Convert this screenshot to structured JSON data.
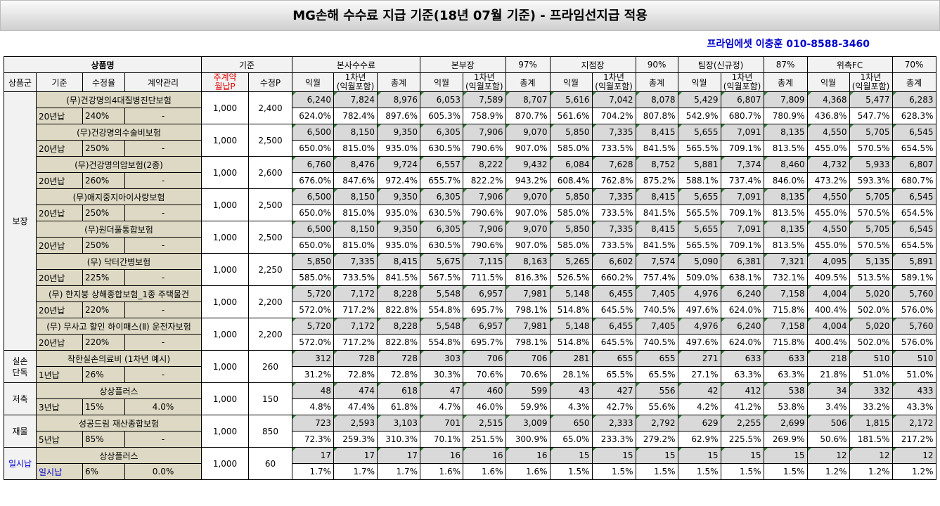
{
  "title": "MG손해 수수료 지급 기준(18년 07월 기준) - 프라임선지급 적용",
  "contact": "프라임에셋 이충훈 010-8588-3460",
  "header": {
    "product_name": "상품명",
    "basis": "기준",
    "hq": "본사수수료",
    "bonbujang": "본부장",
    "bonbujang_rate": "97%",
    "jijeomjang": "지점장",
    "jijeomjang_rate": "90%",
    "timjang": "팀장(신규정)",
    "timjang_rate": "87%",
    "witakfc": "위촉FC",
    "witakfc_rate": "70%",
    "group": "상품군",
    "gijun": "기준",
    "sujeongyul": "수정율",
    "contract_mgmt": "계약관리",
    "main_premium_1": "주계약",
    "main_premium_2": "월납P",
    "modified_p": "수정P",
    "ikwol": "익월",
    "first_year_1": "1차년",
    "first_year_2": "(익월포함)",
    "total": "총계"
  },
  "groups": [
    {
      "name": "보장",
      "blue": false,
      "products": [
        {
          "name": "(무)건강명의4대질병진단보험",
          "term": "20년납",
          "rate": "240%",
          "mgmt": "-",
          "main": "1,000",
          "mod": "2,400",
          "vals": [
            "6,240",
            "7,824",
            "8,976",
            "6,053",
            "7,589",
            "8,707",
            "5,616",
            "7,042",
            "8,078",
            "5,429",
            "6,807",
            "7,809",
            "4,368",
            "5,477",
            "6,283"
          ],
          "pcts": [
            "624.0%",
            "782.4%",
            "897.6%",
            "605.3%",
            "758.9%",
            "870.7%",
            "561.6%",
            "704.2%",
            "807.8%",
            "542.9%",
            "680.7%",
            "780.9%",
            "436.8%",
            "547.7%",
            "628.3%"
          ]
        },
        {
          "name": "(무)건강명의수술비보험",
          "term": "20년납",
          "rate": "250%",
          "mgmt": "-",
          "main": "1,000",
          "mod": "2,500",
          "vals": [
            "6,500",
            "8,150",
            "9,350",
            "6,305",
            "7,906",
            "9,070",
            "5,850",
            "7,335",
            "8,415",
            "5,655",
            "7,091",
            "8,135",
            "4,550",
            "5,705",
            "6,545"
          ],
          "pcts": [
            "650.0%",
            "815.0%",
            "935.0%",
            "630.5%",
            "790.6%",
            "907.0%",
            "585.0%",
            "733.5%",
            "841.5%",
            "565.5%",
            "709.1%",
            "813.5%",
            "455.0%",
            "570.5%",
            "654.5%"
          ]
        },
        {
          "name": "(무)건강명의암보험(2종)",
          "term": "20년납",
          "rate": "260%",
          "mgmt": "-",
          "main": "1,000",
          "mod": "2,600",
          "vals": [
            "6,760",
            "8,476",
            "9,724",
            "6,557",
            "8,222",
            "9,432",
            "6,084",
            "7,628",
            "8,752",
            "5,881",
            "7,374",
            "8,460",
            "4,732",
            "5,933",
            "6,807"
          ],
          "pcts": [
            "676.0%",
            "847.6%",
            "972.4%",
            "655.7%",
            "822.2%",
            "943.2%",
            "608.4%",
            "762.8%",
            "875.2%",
            "588.1%",
            "737.4%",
            "846.0%",
            "473.2%",
            "593.3%",
            "680.7%"
          ]
        },
        {
          "name": "(무)애지중지아이사랑보험",
          "term": "20년납",
          "rate": "250%",
          "mgmt": "-",
          "main": "1,000",
          "mod": "2,500",
          "vals": [
            "6,500",
            "8,150",
            "9,350",
            "6,305",
            "7,906",
            "9,070",
            "5,850",
            "7,335",
            "8,415",
            "5,655",
            "7,091",
            "8,135",
            "4,550",
            "5,705",
            "6,545"
          ],
          "pcts": [
            "650.0%",
            "815.0%",
            "935.0%",
            "630.5%",
            "790.6%",
            "907.0%",
            "585.0%",
            "733.5%",
            "841.5%",
            "565.5%",
            "709.1%",
            "813.5%",
            "455.0%",
            "570.5%",
            "654.5%"
          ]
        },
        {
          "name": "(무)원더풀통합보험",
          "term": "20년납",
          "rate": "250%",
          "mgmt": "-",
          "main": "1,000",
          "mod": "2,500",
          "vals": [
            "6,500",
            "8,150",
            "9,350",
            "6,305",
            "7,906",
            "9,070",
            "5,850",
            "7,335",
            "8,415",
            "5,655",
            "7,091",
            "8,135",
            "4,550",
            "5,705",
            "6,545"
          ],
          "pcts": [
            "650.0%",
            "815.0%",
            "935.0%",
            "630.5%",
            "790.6%",
            "907.0%",
            "585.0%",
            "733.5%",
            "841.5%",
            "565.5%",
            "709.1%",
            "813.5%",
            "455.0%",
            "570.5%",
            "654.5%"
          ]
        },
        {
          "name": "(무) 닥터간병보험",
          "term": "20년납",
          "rate": "225%",
          "mgmt": "-",
          "main": "1,000",
          "mod": "2,250",
          "vals": [
            "5,850",
            "7,335",
            "8,415",
            "5,675",
            "7,115",
            "8,163",
            "5,265",
            "6,602",
            "7,574",
            "5,090",
            "6,381",
            "7,321",
            "4,095",
            "5,135",
            "5,891"
          ],
          "pcts": [
            "585.0%",
            "733.5%",
            "841.5%",
            "567.5%",
            "711.5%",
            "816.3%",
            "526.5%",
            "660.2%",
            "757.4%",
            "509.0%",
            "638.1%",
            "732.1%",
            "409.5%",
            "513.5%",
            "589.1%"
          ]
        },
        {
          "name": "(무) 한지붕 상해종합보험_1종 주택물건",
          "term": "20년납",
          "rate": "220%",
          "mgmt": "-",
          "main": "1,000",
          "mod": "2,200",
          "vals": [
            "5,720",
            "7,172",
            "8,228",
            "5,548",
            "6,957",
            "7,981",
            "5,148",
            "6,455",
            "7,405",
            "4,976",
            "6,240",
            "7,158",
            "4,004",
            "5,020",
            "5,760"
          ],
          "pcts": [
            "572.0%",
            "717.2%",
            "822.8%",
            "554.8%",
            "695.7%",
            "798.1%",
            "514.8%",
            "645.5%",
            "740.5%",
            "497.6%",
            "624.0%",
            "715.8%",
            "400.4%",
            "502.0%",
            "576.0%"
          ]
        },
        {
          "name": "(무) 무사고 할인 하이패스(Ⅱ) 운전자보험",
          "term": "20년납",
          "rate": "220%",
          "mgmt": "-",
          "main": "1,000",
          "mod": "2,200",
          "vals": [
            "5,720",
            "7,172",
            "8,228",
            "5,548",
            "6,957",
            "7,981",
            "5,148",
            "6,455",
            "7,405",
            "4,976",
            "6,240",
            "7,158",
            "4,004",
            "5,020",
            "5,760"
          ],
          "pcts": [
            "572.0%",
            "717.2%",
            "822.8%",
            "554.8%",
            "695.7%",
            "798.1%",
            "514.8%",
            "645.5%",
            "740.5%",
            "497.6%",
            "624.0%",
            "715.8%",
            "400.4%",
            "502.0%",
            "576.0%"
          ]
        }
      ]
    },
    {
      "name": "실손\n단독",
      "blue": false,
      "products": [
        {
          "name": "착한실손의료비 (1차년 예시)",
          "term": "1년납",
          "rate": "26%",
          "mgmt": "-",
          "main": "1,000",
          "mod": "260",
          "vals": [
            "312",
            "728",
            "728",
            "303",
            "706",
            "706",
            "281",
            "655",
            "655",
            "271",
            "633",
            "633",
            "218",
            "510",
            "510"
          ],
          "pcts": [
            "31.2%",
            "72.8%",
            "72.8%",
            "30.3%",
            "70.6%",
            "70.6%",
            "28.1%",
            "65.5%",
            "65.5%",
            "27.1%",
            "63.3%",
            "63.3%",
            "21.8%",
            "51.0%",
            "51.0%"
          ]
        }
      ]
    },
    {
      "name": "저축",
      "blue": false,
      "products": [
        {
          "name": "상상플러스",
          "term": "3년납",
          "rate": "15%",
          "mgmt": "4.0%",
          "main": "1,000",
          "mod": "150",
          "vals": [
            "48",
            "474",
            "618",
            "47",
            "460",
            "599",
            "43",
            "427",
            "556",
            "42",
            "412",
            "538",
            "34",
            "332",
            "433"
          ],
          "pcts": [
            "4.8%",
            "47.4%",
            "61.8%",
            "4.7%",
            "46.0%",
            "59.9%",
            "4.3%",
            "42.7%",
            "55.6%",
            "4.2%",
            "41.2%",
            "53.8%",
            "3.4%",
            "33.2%",
            "43.3%"
          ]
        }
      ]
    },
    {
      "name": "재물",
      "blue": false,
      "products": [
        {
          "name": "성공드림 재산종합보험",
          "term": "5년납",
          "rate": "85%",
          "mgmt": "-",
          "main": "1,000",
          "mod": "850",
          "vals": [
            "723",
            "2,593",
            "3,103",
            "701",
            "2,515",
            "3,009",
            "650",
            "2,333",
            "2,792",
            "629",
            "2,255",
            "2,699",
            "506",
            "1,815",
            "2,172"
          ],
          "pcts": [
            "72.3%",
            "259.3%",
            "310.3%",
            "70.1%",
            "251.5%",
            "300.9%",
            "65.0%",
            "233.3%",
            "279.2%",
            "62.9%",
            "225.5%",
            "269.9%",
            "50.6%",
            "181.5%",
            "217.2%"
          ]
        }
      ]
    },
    {
      "name": "일시납",
      "blue": true,
      "products": [
        {
          "name": "상상플러스",
          "term": "일시납",
          "rate": "6%",
          "mgmt": "0.0%",
          "main": "1,000",
          "mod": "60",
          "vals": [
            "17",
            "17",
            "17",
            "16",
            "16",
            "16",
            "15",
            "15",
            "15",
            "15",
            "15",
            "15",
            "12",
            "12",
            "12"
          ],
          "pcts": [
            "1.7%",
            "1.7%",
            "1.7%",
            "1.6%",
            "1.6%",
            "1.6%",
            "1.5%",
            "1.5%",
            "1.5%",
            "1.5%",
            "1.5%",
            "1.5%",
            "1.2%",
            "1.2%",
            "1.2%"
          ]
        }
      ]
    }
  ]
}
